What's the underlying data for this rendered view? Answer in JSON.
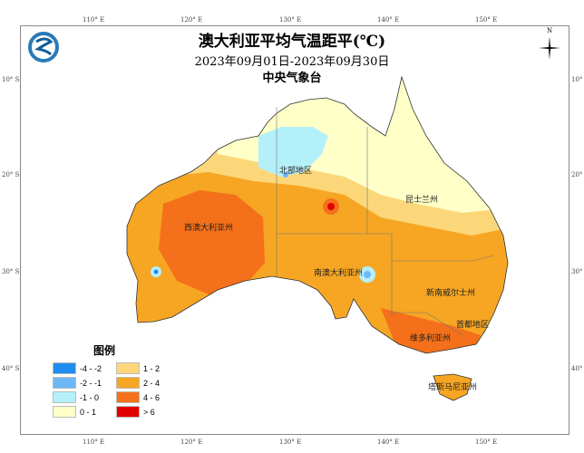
{
  "header": {
    "title": "澳大利亚平均气温距平(℃)",
    "period": "2023年09月01日-2023年09月30日",
    "organization": "中央气象台"
  },
  "axes": {
    "lon_labels": [
      "110° E",
      "120° E",
      "130° E",
      "140° E",
      "150° E"
    ],
    "lat_labels": [
      "10° S",
      "20° S",
      "30° S",
      "40° S"
    ]
  },
  "compass": {
    "label": "N",
    "icon": "north-arrow-icon"
  },
  "logo": {
    "icon": "cma-logo-icon"
  },
  "regions": [
    "北部地区",
    "昆士兰州",
    "西澳大利亚州",
    "南澳大利亚州",
    "新南威尔士州",
    "首都地区",
    "维多利亚州",
    "塔斯马尼亚州"
  ],
  "legend": {
    "title": "图例",
    "items": [
      {
        "label": "-4 - -2",
        "color": "#1e8cf0"
      },
      {
        "label": "-2 - -1",
        "color": "#6db8f7"
      },
      {
        "label": "-1 - 0",
        "color": "#b4f0fa"
      },
      {
        "label": "0 - 1",
        "color": "#ffffc8"
      },
      {
        "label": "1 - 2",
        "color": "#fcd77a"
      },
      {
        "label": "2 - 4",
        "color": "#f6a623"
      },
      {
        "label": "4 - 6",
        "color": "#f4701a"
      },
      {
        "label": "> 6",
        "color": "#e00000"
      }
    ]
  }
}
